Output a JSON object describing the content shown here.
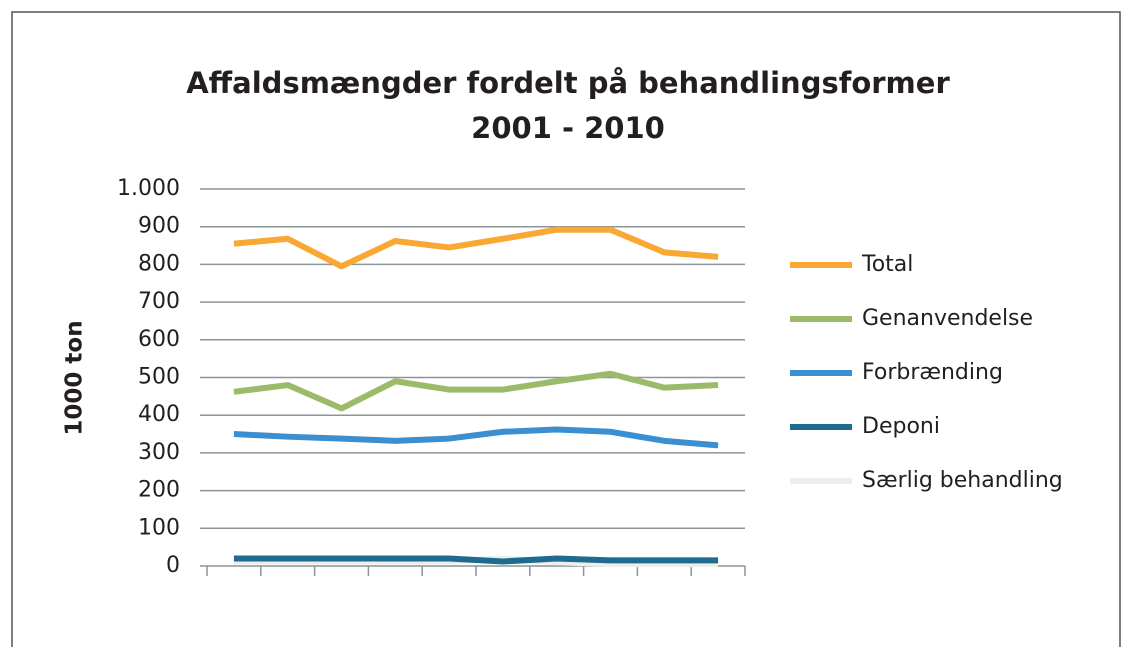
{
  "chart_data": {
    "type": "line",
    "title": "Affaldsmængder fordelt på behandlingsformer",
    "subtitle": "2001 - 2010",
    "y_label": "1000 ton",
    "categories": [
      null,
      null,
      null,
      null,
      null,
      null,
      null,
      null,
      null,
      null
    ],
    "series": [
      {
        "name": "Total",
        "color": "#f9a834",
        "values": [
          855,
          868,
          795,
          862,
          845,
          868,
          892,
          892,
          832,
          820
        ]
      },
      {
        "name": "Genanvendelse",
        "color": "#9cbb6a",
        "values": [
          462,
          480,
          418,
          490,
          468,
          468,
          490,
          510,
          473,
          480
        ]
      },
      {
        "name": "Forbrænding",
        "color": "#3b8fd0",
        "values": [
          350,
          343,
          338,
          332,
          338,
          356,
          362,
          356,
          332,
          320
        ]
      },
      {
        "name": "Deponi",
        "color": "#1f6a8f",
        "values": [
          20,
          20,
          20,
          20,
          20,
          12,
          20,
          15,
          15,
          15
        ]
      },
      {
        "name": "Særlig behandling",
        "color": "#eeeeea",
        "values": [
          12,
          12,
          12,
          12,
          12,
          20,
          10,
          5,
          5,
          5
        ]
      }
    ],
    "ylim": [
      0,
      1000
    ],
    "yticks": [
      0,
      100,
      200,
      300,
      400,
      500,
      600,
      700,
      800,
      900,
      {
        "value": 1000,
        "label": "1.000"
      }
    ],
    "grid": true,
    "legend": "right"
  }
}
